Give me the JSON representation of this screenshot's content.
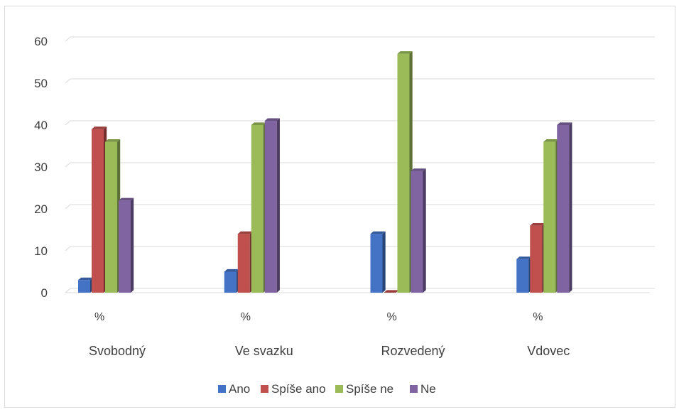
{
  "chart_data": {
    "type": "bar",
    "categories": [
      "Svobodný",
      "Ve svazku",
      "Rozvedený",
      "Vdovec"
    ],
    "subcategory_label": "%",
    "series": [
      {
        "name": "Ano",
        "color": "#4472C4",
        "values": [
          3,
          5,
          14,
          8
        ]
      },
      {
        "name": "Spíše ano",
        "color": "#C0504D",
        "values": [
          39,
          14,
          0,
          16
        ]
      },
      {
        "name": "Spíše ne",
        "color": "#9BBB59",
        "values": [
          36,
          40,
          57,
          36
        ]
      },
      {
        "name": "Ne",
        "color": "#8064A2",
        "values": [
          22,
          41,
          29,
          40
        ]
      }
    ],
    "ylim": [
      0,
      60
    ],
    "yticks": [
      0,
      10,
      20,
      30,
      40,
      50,
      60
    ],
    "grid": true,
    "legend_position": "bottom",
    "style": "3d-clustered-column"
  }
}
